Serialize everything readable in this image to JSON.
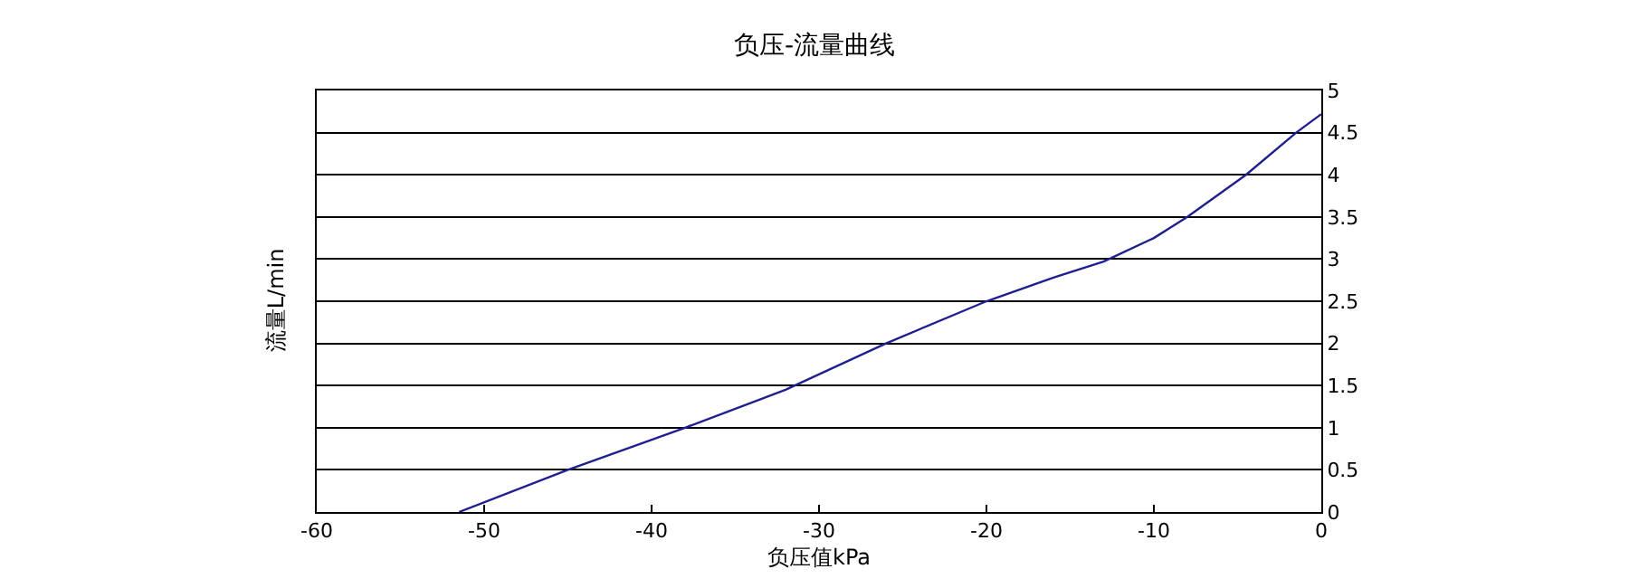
{
  "chart_data": {
    "type": "line",
    "title": "负压-流量曲线",
    "xlabel": "负压值kPa",
    "ylabel": "流量L/min",
    "x": [
      -51.5,
      -45,
      -38,
      -32,
      -26,
      -20,
      -16,
      -13,
      -10,
      -8,
      -4.5,
      -1.5,
      0
    ],
    "series": [
      {
        "color": "#1f1f8f",
        "values": [
          0,
          0.5,
          1.0,
          1.45,
          2.0,
          2.5,
          2.78,
          2.97,
          3.25,
          3.5,
          4.0,
          4.5,
          4.72
        ]
      }
    ],
    "xlim": [
      -60,
      0
    ],
    "xticks": [
      -60,
      -50,
      -40,
      -30,
      -20,
      -10,
      0
    ],
    "ylim": [
      0,
      5
    ],
    "yticks": [
      0,
      {
        "value": 0.5,
        "label": "0.5"
      },
      1,
      {
        "value": 1.5,
        "label": "1.5"
      },
      2,
      {
        "value": 2.5,
        "label": "2.5"
      },
      3,
      {
        "value": 3.5,
        "label": "3.5"
      },
      4,
      {
        "value": 4.5,
        "label": "4.5"
      },
      5
    ],
    "grid": "y",
    "marker": "none",
    "line_style": "solid"
  }
}
